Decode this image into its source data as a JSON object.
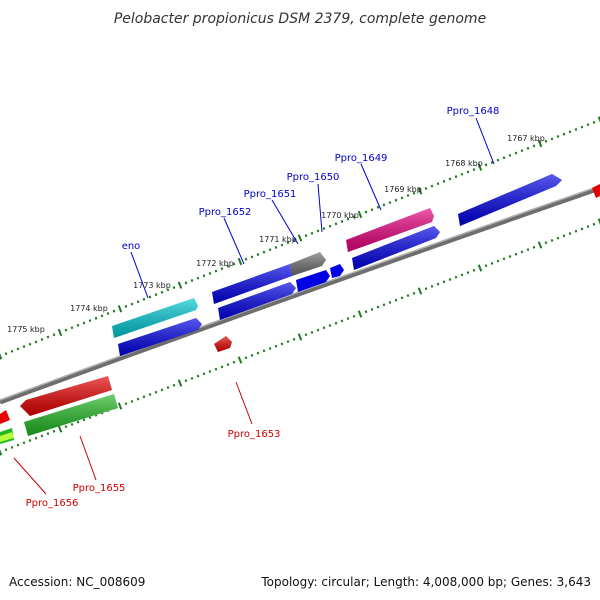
{
  "title": "Pelobacter propionicus DSM 2379, complete genome",
  "footer": {
    "accession": "Accession: NC_008609",
    "summary": "Topology: circular; Length: 4,008,000 bp; Genes: 3,643"
  },
  "colors": {
    "backbone": "#7a7a7a",
    "ticks": "#1f7a1f",
    "forward_label": "#0000cc",
    "reverse_label": "#cc0000"
  },
  "kbp_labels": [
    "1767 kbp",
    "1768 kbp",
    "1769 kbp",
    "1770 kbp",
    "1771 kbp",
    "1772 kbp",
    "1773 kbp",
    "1774 kbp",
    "1775 kbp"
  ],
  "forward_genes": [
    {
      "label": "Ppro_1648"
    },
    {
      "label": "Ppro_1649"
    },
    {
      "label": "Ppro_1650"
    },
    {
      "label": "Ppro_1651"
    },
    {
      "label": "Ppro_1652"
    },
    {
      "label": "eno"
    }
  ],
  "reverse_genes": [
    {
      "label": "Ppro_1653"
    },
    {
      "label": "Ppro_1655"
    },
    {
      "label": "Ppro_1656"
    }
  ]
}
